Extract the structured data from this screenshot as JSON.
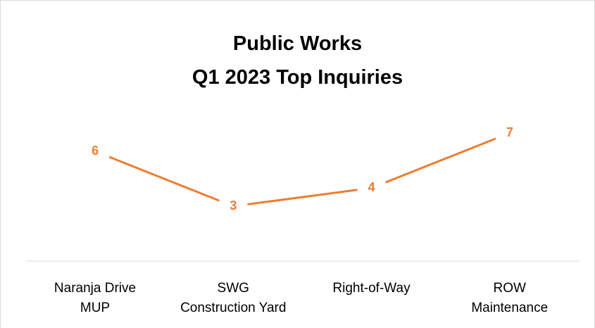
{
  "chart_data": {
    "type": "line",
    "title": "Public Works\nQ1 2023 Top Inquiries",
    "categories": [
      "Naranja Drive\nMUP",
      "SWG\nConstruction Yard",
      "Right-of-Way",
      "ROW\nMaintenance"
    ],
    "series": [
      {
        "name": "Inquiries",
        "color": "#ed7d31",
        "values": [
          6,
          3,
          4,
          7
        ]
      }
    ],
    "ylim": [
      0,
      8
    ]
  }
}
